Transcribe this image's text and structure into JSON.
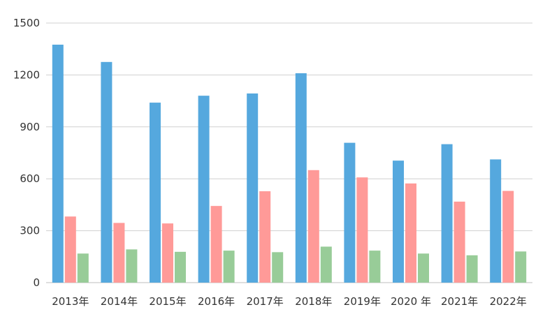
{
  "chart_data": {
    "type": "bar",
    "title": "",
    "xlabel": "",
    "ylabel": "",
    "categories": [
      "2013年",
      "2014年",
      "2015年",
      "2016年",
      "2017年",
      "2018年",
      "2019年",
      "2020 年",
      "2021年",
      "2022年"
    ],
    "series": [
      {
        "color": "#55a8de",
        "values": [
          1375,
          1275,
          1040,
          1080,
          1093,
          1210,
          808,
          705,
          800,
          712
        ]
      },
      {
        "color": "#ff9a98",
        "values": [
          382,
          345,
          342,
          443,
          528,
          650,
          608,
          573,
          468,
          530
        ]
      },
      {
        "color": "#98cc98",
        "values": [
          168,
          192,
          178,
          185,
          176,
          208,
          185,
          168,
          158,
          180
        ]
      }
    ],
    "ylim": [
      0,
      1500
    ],
    "yticks": [
      "0",
      "300",
      "600",
      "900",
      "1200",
      "1500"
    ],
    "grid": true,
    "legend": "none"
  }
}
